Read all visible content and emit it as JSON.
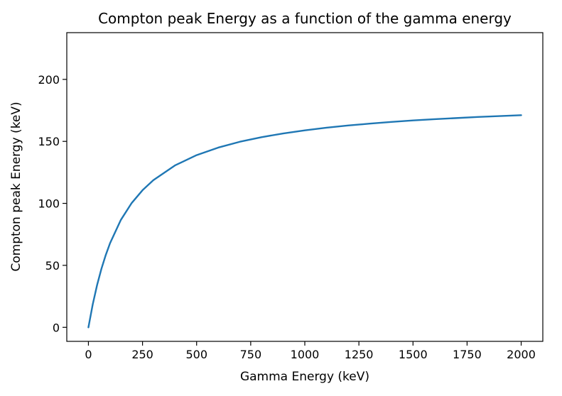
{
  "chart_data": {
    "type": "line",
    "title": "Compton peak Energy as a function of the gamma energy",
    "xlabel": "Gamma Energy (keV)",
    "ylabel": "Compton peak Energy (keV)",
    "xlim": [
      -100,
      2100
    ],
    "ylim": [
      -11.3,
      237.7
    ],
    "xticks": [
      0,
      250,
      500,
      750,
      1000,
      1250,
      1500,
      1750,
      2000
    ],
    "xtick_labels": [
      "0",
      "250",
      "500",
      "750",
      "1000",
      "1250",
      "1500",
      "1750",
      "2000"
    ],
    "yticks": [
      0,
      50,
      100,
      150,
      200
    ],
    "ytick_labels": [
      "0",
      "50",
      "100",
      "150",
      "200"
    ],
    "grid": false,
    "legend": "none",
    "line_color": "#1f77b4",
    "series": [
      {
        "x": [
          0,
          20,
          40,
          60,
          80,
          100,
          150,
          200,
          250,
          300,
          400,
          500,
          600,
          700,
          800,
          900,
          1000,
          1100,
          1200,
          1300,
          1400,
          1500,
          1600,
          1700,
          1800,
          1900,
          2000
        ],
        "y": [
          0,
          18.6,
          34.1,
          47.2,
          58.3,
          67.9,
          86.7,
          100.3,
          110.6,
          118.7,
          130.6,
          138.9,
          145.0,
          149.7,
          153.4,
          156.4,
          158.9,
          161.0,
          162.8,
          164.3,
          165.7,
          166.9,
          167.9,
          168.8,
          169.7,
          170.4,
          171.1
        ]
      }
    ]
  }
}
